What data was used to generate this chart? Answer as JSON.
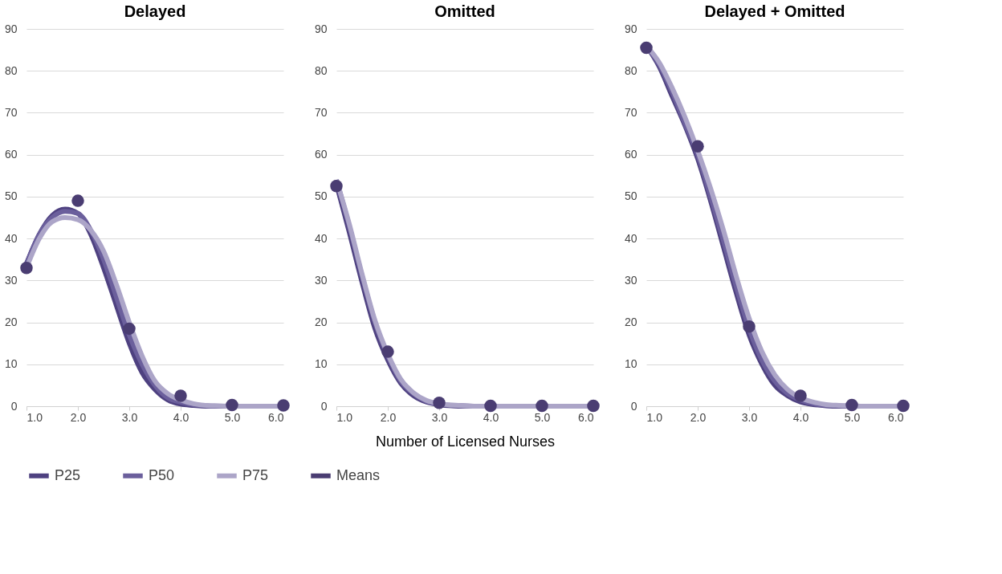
{
  "chart_data": [
    {
      "type": "line",
      "title": "Delayed",
      "legend": "bottom",
      "xlim": [
        1,
        6
      ],
      "xticks": [
        {
          "value": 1,
          "label": "1.0"
        },
        {
          "value": 2,
          "label": "2.0"
        },
        {
          "value": 3,
          "label": "3.0"
        },
        {
          "value": 4,
          "label": "4.0"
        },
        {
          "value": 5,
          "label": "5.0"
        },
        {
          "value": 6,
          "label": "6.0"
        }
      ],
      "ylim": [
        0,
        90
      ],
      "yticks": [
        0,
        10,
        20,
        30,
        40,
        50,
        60,
        70,
        80,
        90
      ],
      "grid": "y",
      "x": [
        1.0,
        1.25,
        1.5,
        1.75,
        2.0,
        2.25,
        2.5,
        2.75,
        3.0,
        3.25,
        3.5,
        3.75,
        4.0,
        4.25,
        4.5,
        4.75,
        5.0,
        5.25,
        5.5,
        5.75,
        6.0
      ],
      "series": [
        {
          "name": "P25",
          "color": "#4e4180",
          "values": [
            34,
            41,
            45.5,
            47,
            46,
            41,
            33,
            24,
            15,
            8,
            4,
            1.5,
            0.5,
            0.2,
            0,
            0,
            0,
            0,
            0,
            0,
            0
          ]
        },
        {
          "name": "P50",
          "color": "#6b5f9c",
          "values": [
            34,
            41,
            45,
            46.5,
            46,
            42,
            35,
            26,
            17,
            10,
            5,
            2,
            1,
            0.4,
            0.1,
            0,
            0,
            0,
            0,
            0,
            0
          ]
        },
        {
          "name": "P75",
          "color": "#aca5c8",
          "values": [
            33,
            40,
            44,
            45,
            44.5,
            42,
            37,
            29,
            20,
            12,
            6,
            3,
            1.5,
            0.6,
            0.2,
            0.1,
            0,
            0,
            0,
            0,
            0
          ]
        },
        {
          "name": "Means",
          "type": "scatter",
          "color": "#4a3d72",
          "x": [
            1,
            2,
            3,
            4,
            5,
            6
          ],
          "values": [
            33,
            49,
            18.5,
            2.5,
            0.3,
            0.2
          ]
        }
      ]
    },
    {
      "type": "line",
      "title": "Omitted",
      "xlabel": "Number of Licensed Nurses",
      "legend": "bottom",
      "xlim": [
        1,
        6
      ],
      "xticks": [
        {
          "value": 1,
          "label": "1.0"
        },
        {
          "value": 2,
          "label": "2.0"
        },
        {
          "value": 3,
          "label": "3.0"
        },
        {
          "value": 4,
          "label": "4.0"
        },
        {
          "value": 5,
          "label": "5.0"
        },
        {
          "value": 6,
          "label": "6.0"
        }
      ],
      "ylim": [
        0,
        90
      ],
      "yticks": [
        0,
        10,
        20,
        30,
        40,
        50,
        60,
        70,
        80,
        90
      ],
      "grid": "y",
      "x": [
        1.0,
        1.25,
        1.5,
        1.75,
        2.0,
        2.25,
        2.5,
        2.75,
        3.0,
        3.25,
        3.5,
        3.75,
        4.0,
        4.25,
        4.5,
        4.75,
        5.0,
        5.25,
        5.5,
        5.75,
        6.0
      ],
      "series": [
        {
          "name": "P25",
          "color": "#4e4180",
          "values": [
            53,
            41.5,
            29.5,
            18.5,
            11,
            5.5,
            2.5,
            1,
            0.4,
            0.1,
            0,
            0,
            0,
            0,
            0,
            0,
            0,
            0,
            0,
            0,
            0
          ]
        },
        {
          "name": "P50",
          "color": "#6b5f9c",
          "values": [
            54,
            43,
            31,
            20,
            12,
            6,
            3,
            1.2,
            0.5,
            0.2,
            0.1,
            0,
            0,
            0,
            0,
            0,
            0,
            0,
            0,
            0,
            0
          ]
        },
        {
          "name": "P75",
          "color": "#aca5c8",
          "values": [
            54,
            43.5,
            31.5,
            20.5,
            12.5,
            6.5,
            3.2,
            1.4,
            0.6,
            0.3,
            0.1,
            0,
            0,
            0,
            0,
            0,
            0,
            0,
            0,
            0,
            0
          ]
        },
        {
          "name": "Means",
          "type": "scatter",
          "color": "#4a3d72",
          "x": [
            1,
            2,
            3,
            4,
            5,
            6
          ],
          "values": [
            52.5,
            13,
            0.8,
            0.1,
            0.1,
            0.1
          ]
        }
      ]
    },
    {
      "type": "line",
      "title": "Delayed + Omitted",
      "legend": "bottom",
      "xlim": [
        1,
        6
      ],
      "xticks": [
        {
          "value": 1,
          "label": "1.0"
        },
        {
          "value": 2,
          "label": "2.0"
        },
        {
          "value": 3,
          "label": "3.0"
        },
        {
          "value": 4,
          "label": "4.0"
        },
        {
          "value": 5,
          "label": "5.0"
        },
        {
          "value": 6,
          "label": "6.0"
        }
      ],
      "ylim": [
        0,
        90
      ],
      "yticks": [
        0,
        10,
        20,
        30,
        40,
        50,
        60,
        70,
        80,
        90
      ],
      "grid": "y",
      "x": [
        1.0,
        1.25,
        1.5,
        1.75,
        2.0,
        2.25,
        2.5,
        2.75,
        3.0,
        3.25,
        3.5,
        3.75,
        4.0,
        4.25,
        4.5,
        4.75,
        5.0,
        5.25,
        5.5,
        5.75,
        6.0
      ],
      "series": [
        {
          "name": "P25",
          "color": "#4e4180",
          "values": [
            86,
            81,
            74,
            67,
            59,
            49,
            38,
            27,
            17,
            10,
            5,
            2.5,
            1,
            0.4,
            0.1,
            0,
            0,
            0,
            0,
            0,
            0
          ]
        },
        {
          "name": "P50",
          "color": "#6b5f9c",
          "values": [
            86,
            81.5,
            75,
            67.5,
            60,
            50,
            39.5,
            28.5,
            18.5,
            11,
            6,
            3,
            1.5,
            0.6,
            0.2,
            0.1,
            0,
            0,
            0,
            0,
            0
          ]
        },
        {
          "name": "P75",
          "color": "#aca5c8",
          "values": [
            86,
            82,
            76,
            69,
            61,
            52,
            42,
            31,
            21,
            13,
            7.5,
            4,
            2,
            1,
            0.4,
            0.2,
            0.1,
            0,
            0,
            0,
            0
          ]
        },
        {
          "name": "Means",
          "type": "scatter",
          "color": "#4a3d72",
          "x": [
            1,
            2,
            3,
            4,
            5,
            6
          ],
          "values": [
            85.5,
            62,
            19,
            2.5,
            0.3,
            0.1
          ]
        }
      ]
    }
  ]
}
